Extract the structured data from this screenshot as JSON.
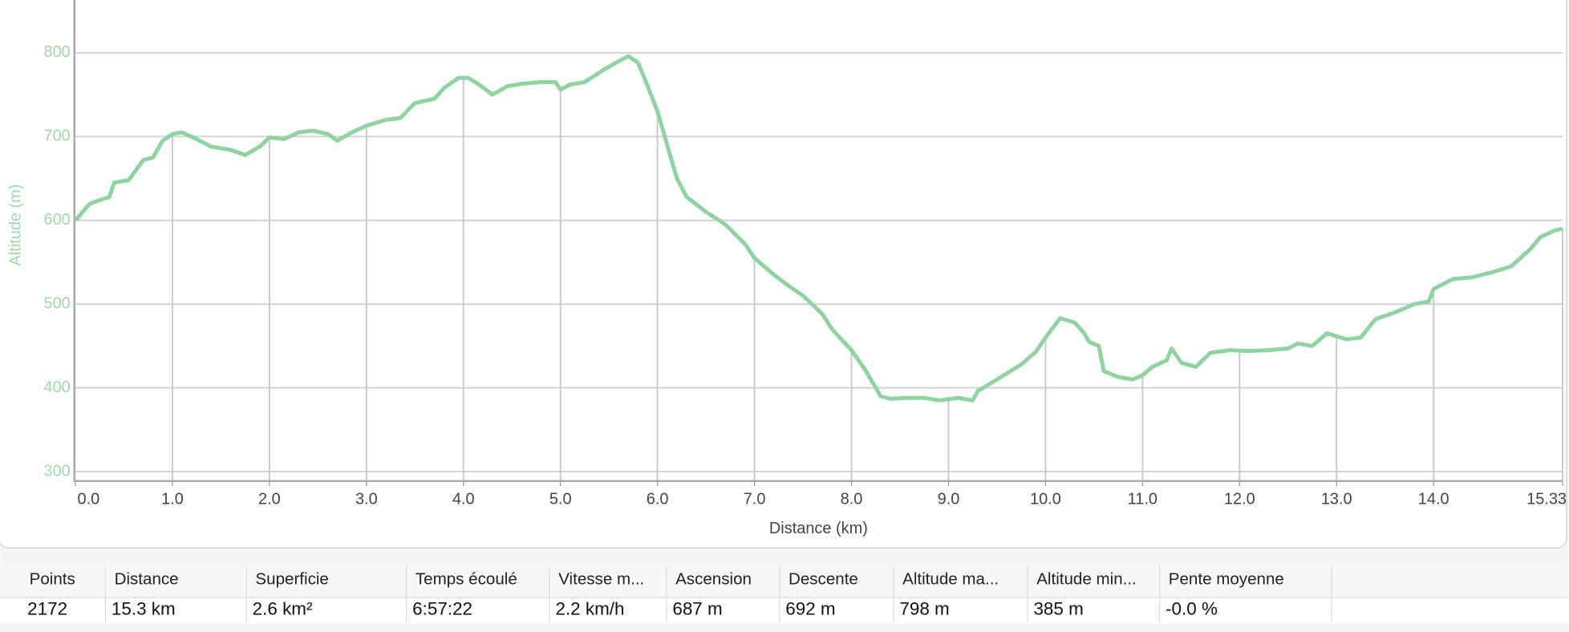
{
  "chart_data": {
    "type": "line",
    "xlabel": "Distance (km)",
    "ylabel": "Altitude (m)",
    "x": [
      0,
      0.15,
      0.35,
      0.4,
      0.55,
      0.7,
      0.8,
      0.9,
      1.0,
      1.1,
      1.25,
      1.4,
      1.6,
      1.75,
      1.9,
      2.0,
      2.15,
      2.3,
      2.45,
      2.6,
      2.7,
      2.85,
      3.0,
      3.2,
      3.35,
      3.5,
      3.7,
      3.8,
      3.95,
      4.05,
      4.15,
      4.3,
      4.45,
      4.6,
      4.8,
      4.95,
      5.0,
      5.1,
      5.25,
      5.45,
      5.6,
      5.7,
      5.8,
      5.9,
      6.0,
      6.1,
      6.2,
      6.3,
      6.5,
      6.7,
      6.9,
      7.0,
      7.2,
      7.35,
      7.5,
      7.7,
      7.8,
      8.0,
      8.15,
      8.3,
      8.4,
      8.6,
      8.75,
      8.9,
      9.1,
      9.25,
      9.3,
      9.5,
      9.75,
      9.9,
      10.0,
      10.15,
      10.3,
      10.4,
      10.45,
      10.55,
      10.6,
      10.75,
      10.9,
      11.0,
      11.1,
      11.25,
      11.3,
      11.4,
      11.55,
      11.7,
      11.9,
      12.1,
      12.3,
      12.5,
      12.6,
      12.75,
      12.9,
      13.1,
      13.25,
      13.4,
      13.6,
      13.8,
      13.95,
      14.0,
      14.2,
      14.4,
      14.6,
      14.8,
      15.0,
      15.1,
      15.25,
      15.33
    ],
    "series": [
      {
        "color": "#8fd4a0",
        "values": [
          600,
          620,
          628,
          645,
          648,
          672,
          675,
          695,
          703,
          705,
          697,
          688,
          684,
          678,
          688,
          699,
          697,
          705,
          707,
          703,
          695,
          705,
          713,
          720,
          722,
          740,
          745,
          758,
          770,
          770,
          763,
          750,
          760,
          763,
          765,
          765,
          756,
          762,
          765,
          780,
          790,
          796,
          788,
          760,
          730,
          690,
          650,
          628,
          610,
          595,
          572,
          555,
          535,
          522,
          510,
          488,
          470,
          445,
          420,
          390,
          387,
          388,
          388,
          385,
          388,
          385,
          396,
          410,
          428,
          443,
          460,
          483,
          478,
          465,
          455,
          450,
          420,
          413,
          410,
          415,
          425,
          433,
          447,
          430,
          425,
          442,
          445,
          444,
          445,
          447,
          453,
          450,
          465,
          458,
          460,
          482,
          490,
          500,
          503,
          518,
          530,
          532,
          538,
          545,
          566,
          580,
          588,
          590
        ]
      }
    ],
    "xlim": [
      0,
      15.33
    ],
    "ylim": [
      290,
      863
    ],
    "xticks": [
      {
        "value": 0,
        "label": "0.0"
      },
      {
        "value": 1,
        "label": "1.0"
      },
      {
        "value": 2,
        "label": "2.0"
      },
      {
        "value": 3,
        "label": "3.0"
      },
      {
        "value": 4,
        "label": "4.0"
      },
      {
        "value": 5,
        "label": "5.0"
      },
      {
        "value": 6,
        "label": "6.0"
      },
      {
        "value": 7,
        "label": "7.0"
      },
      {
        "value": 8,
        "label": "8.0"
      },
      {
        "value": 9,
        "label": "9.0"
      },
      {
        "value": 10,
        "label": "10.0"
      },
      {
        "value": 11,
        "label": "11.0"
      },
      {
        "value": 12,
        "label": "12.0"
      },
      {
        "value": 13,
        "label": "13.0"
      },
      {
        "value": 14,
        "label": "14.0"
      },
      15.33
    ],
    "yticks": [
      300,
      400,
      500,
      600,
      700,
      800
    ],
    "grid": true
  },
  "table": {
    "headers": [
      "Points",
      "Distance",
      "Superficie",
      "Temps écoulé",
      "Vitesse m...",
      "Ascension",
      "Descente",
      "Altitude ma...",
      "Altitude min...",
      "Pente moyenne"
    ],
    "rows": [
      [
        "2172",
        "15.3 km",
        "2.6 km²",
        "6:57:22",
        "2.2 km/h",
        "687 m",
        "692 m",
        "798 m",
        "385 m",
        "-0.0 %"
      ]
    ]
  }
}
